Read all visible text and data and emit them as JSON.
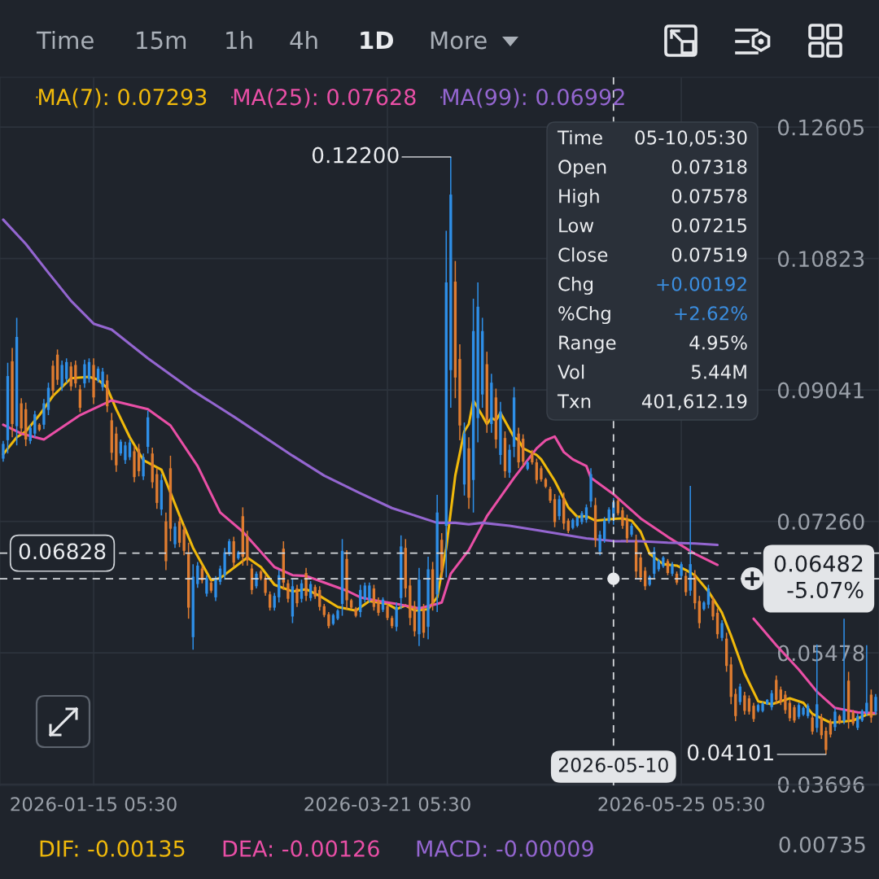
{
  "chart_data": {
    "type": "candlestick",
    "x": [
      "2025-12-26",
      "2025-12-27",
      "2025-12-28",
      "2025-12-29",
      "2025-12-30",
      "2025-12-31",
      "2026-01-01",
      "2026-01-02",
      "2026-01-03",
      "2026-01-04",
      "2026-01-05",
      "2026-01-06",
      "2026-01-07",
      "2026-01-08",
      "2026-01-09",
      "2026-01-10",
      "2026-01-11",
      "2026-01-12",
      "2026-01-13",
      "2026-01-14",
      "2026-01-15",
      "2026-01-16",
      "2026-01-17",
      "2026-01-18",
      "2026-01-19",
      "2026-01-20",
      "2026-01-21",
      "2026-01-22",
      "2026-01-23",
      "2026-01-24",
      "2026-01-25",
      "2026-01-26",
      "2026-01-27",
      "2026-01-28",
      "2026-01-29",
      "2026-01-30",
      "2026-01-31",
      "2026-02-01",
      "2026-02-02",
      "2026-02-03",
      "2026-02-04",
      "2026-02-05",
      "2026-02-06",
      "2026-02-07",
      "2026-02-08",
      "2026-02-09",
      "2026-02-10",
      "2026-02-11",
      "2026-02-12",
      "2026-02-13",
      "2026-02-14",
      "2026-02-15",
      "2026-02-16",
      "2026-02-17",
      "2026-02-18",
      "2026-02-19",
      "2026-02-20",
      "2026-02-21",
      "2026-02-22",
      "2026-02-23",
      "2026-02-24",
      "2026-02-25",
      "2026-02-26",
      "2026-02-27",
      "2026-02-28",
      "2026-03-01",
      "2026-03-02",
      "2026-03-03",
      "2026-03-04",
      "2026-03-05",
      "2026-03-06",
      "2026-03-07",
      "2026-03-08",
      "2026-03-09",
      "2026-03-10",
      "2026-03-11",
      "2026-03-12",
      "2026-03-13",
      "2026-03-14",
      "2026-03-15",
      "2026-03-16",
      "2026-03-17",
      "2026-03-18",
      "2026-03-19",
      "2026-03-20",
      "2026-03-21",
      "2026-03-22",
      "2026-03-23",
      "2026-03-24",
      "2026-03-25",
      "2026-03-26",
      "2026-03-27",
      "2026-03-28",
      "2026-03-29",
      "2026-03-30",
      "2026-03-31",
      "2026-04-01",
      "2026-04-02",
      "2026-04-03",
      "2026-04-04",
      "2026-04-05",
      "2026-04-06",
      "2026-04-07",
      "2026-04-08",
      "2026-04-09",
      "2026-04-10",
      "2026-04-11",
      "2026-04-12",
      "2026-04-13",
      "2026-04-14",
      "2026-04-15",
      "2026-04-16",
      "2026-04-17",
      "2026-04-18",
      "2026-04-19",
      "2026-04-20",
      "2026-04-21",
      "2026-04-22",
      "2026-04-23",
      "2026-04-24",
      "2026-04-25",
      "2026-04-26",
      "2026-04-27",
      "2026-04-28",
      "2026-04-29",
      "2026-04-30",
      "2026-05-01",
      "2026-05-02",
      "2026-05-03",
      "2026-05-04",
      "2026-05-05",
      "2026-05-06",
      "2026-05-07",
      "2026-05-08",
      "2026-05-09",
      "2026-05-10",
      "2026-05-11",
      "2026-05-12",
      "2026-05-13",
      "2026-05-14",
      "2026-05-15",
      "2026-05-16",
      "2026-05-17",
      "2026-05-18",
      "2026-05-19",
      "2026-05-20",
      "2026-05-21",
      "2026-05-22",
      "2026-05-23",
      "2026-05-24",
      "2026-05-25",
      "2026-05-26",
      "2026-05-27",
      "2026-05-28",
      "2026-05-29",
      "2026-05-30",
      "2026-05-31",
      "2026-06-01",
      "2026-06-02",
      "2026-06-03",
      "2026-06-04",
      "2026-06-05",
      "2026-06-06",
      "2026-06-07",
      "2026-06-08",
      "2026-06-09",
      "2026-06-10",
      "2026-06-11",
      "2026-06-12",
      "2026-06-13",
      "2026-06-14",
      "2026-06-15",
      "2026-06-16",
      "2026-06-17",
      "2026-06-18",
      "2026-06-19",
      "2026-06-20",
      "2026-06-21",
      "2026-06-22",
      "2026-06-23",
      "2026-06-24",
      "2026-06-25",
      "2026-06-26",
      "2026-06-27",
      "2026-06-28",
      "2026-06-29",
      "2026-06-30",
      "2026-07-01",
      "2026-07-02",
      "2026-07-03",
      "2026-07-04",
      "2026-07-05",
      "2026-07-06",
      "2026-07-07"
    ],
    "ohlc": [
      [
        0.0811,
        0.0835,
        0.0807,
        0.0831
      ],
      [
        0.0836,
        0.0941,
        0.0818,
        0.0923
      ],
      [
        0.0943,
        0.0961,
        0.084,
        0.0858
      ],
      [
        0.0855,
        0.1002,
        0.0829,
        0.0976
      ],
      [
        0.0886,
        0.0893,
        0.0845,
        0.0852
      ],
      [
        0.0878,
        0.0887,
        0.0828,
        0.0837
      ],
      [
        0.0835,
        0.0857,
        0.0831,
        0.0853
      ],
      [
        0.0845,
        0.0876,
        0.084,
        0.0871
      ],
      [
        0.0857,
        0.0859,
        0.0848,
        0.085
      ],
      [
        0.0857,
        0.0892,
        0.0851,
        0.0886
      ],
      [
        0.0877,
        0.0914,
        0.087,
        0.0907
      ],
      [
        0.0937,
        0.0944,
        0.0896,
        0.0903
      ],
      [
        0.0952,
        0.0959,
        0.0911,
        0.0918
      ],
      [
        0.0909,
        0.0944,
        0.0903,
        0.0938
      ],
      [
        0.0919,
        0.0947,
        0.0914,
        0.0942
      ],
      [
        0.0936,
        0.0942,
        0.0903,
        0.0909
      ],
      [
        0.0938,
        0.0944,
        0.0907,
        0.0913
      ],
      [
        0.0905,
        0.0911,
        0.0874,
        0.088
      ],
      [
        0.0913,
        0.0945,
        0.0907,
        0.0939
      ],
      [
        0.0919,
        0.0947,
        0.0914,
        0.0942
      ],
      [
        0.0938,
        0.0947,
        0.0885,
        0.0894
      ],
      [
        0.0917,
        0.0936,
        0.0914,
        0.0933
      ],
      [
        0.0908,
        0.0934,
        0.0903,
        0.0929
      ],
      [
        0.0917,
        0.0925,
        0.0874,
        0.0882
      ],
      [
        0.0863,
        0.0873,
        0.0809,
        0.0819
      ],
      [
        0.0845,
        0.0854,
        0.0793,
        0.0802
      ],
      [
        0.0818,
        0.0837,
        0.0815,
        0.0834
      ],
      [
        0.0809,
        0.0834,
        0.0804,
        0.0829
      ],
      [
        0.0813,
        0.0837,
        0.0809,
        0.0833
      ],
      [
        0.0821,
        0.0828,
        0.0779,
        0.0786
      ],
      [
        0.0824,
        0.0831,
        0.0787,
        0.0794
      ],
      [
        0.0787,
        0.0818,
        0.0782,
        0.0813
      ],
      [
        0.0827,
        0.0876,
        0.0818,
        0.0867
      ],
      [
        0.0818,
        0.0826,
        0.0771,
        0.0779
      ],
      [
        0.079,
        0.0798,
        0.0743,
        0.0751
      ],
      [
        0.0742,
        0.079,
        0.0734,
        0.0782
      ],
      [
        0.0726,
        0.0738,
        0.066,
        0.0672
      ],
      [
        0.0798,
        0.0815,
        0.0699,
        0.0716
      ],
      [
        0.0695,
        0.0724,
        0.069,
        0.0719
      ],
      [
        0.0726,
        0.0732,
        0.0691,
        0.0697
      ],
      [
        0.0715,
        0.0721,
        0.068,
        0.0686
      ],
      [
        0.0682,
        0.0697,
        0.0594,
        0.0609
      ],
      [
        0.0569,
        0.0668,
        0.0552,
        0.0651
      ],
      [
        0.0641,
        0.0671,
        0.0636,
        0.0666
      ],
      [
        0.0662,
        0.0666,
        0.0642,
        0.0646
      ],
      [
        0.0628,
        0.0653,
        0.0624,
        0.0649
      ],
      [
        0.0643,
        0.0646,
        0.0629,
        0.0632
      ],
      [
        0.0623,
        0.0652,
        0.0618,
        0.0647
      ],
      [
        0.0644,
        0.0666,
        0.064,
        0.0662
      ],
      [
        0.0653,
        0.069,
        0.0647,
        0.0684
      ],
      [
        0.0682,
        0.0702,
        0.0679,
        0.0699
      ],
      [
        0.0699,
        0.0705,
        0.0664,
        0.067
      ],
      [
        0.0676,
        0.0686,
        0.0674,
        0.0684
      ],
      [
        0.0733,
        0.0745,
        0.0666,
        0.0678
      ],
      [
        0.0706,
        0.0713,
        0.0666,
        0.0673
      ],
      [
        0.0662,
        0.0668,
        0.0627,
        0.0633
      ],
      [
        0.0638,
        0.0658,
        0.0635,
        0.0655
      ],
      [
        0.0658,
        0.066,
        0.0646,
        0.0648
      ],
      [
        0.0649,
        0.0653,
        0.0625,
        0.0629
      ],
      [
        0.0627,
        0.0631,
        0.0605,
        0.0609
      ],
      [
        0.0609,
        0.0629,
        0.0605,
        0.0625
      ],
      [
        0.0623,
        0.066,
        0.0616,
        0.0653
      ],
      [
        0.0689,
        0.0699,
        0.0633,
        0.0643
      ],
      [
        0.0642,
        0.0647,
        0.0616,
        0.0621
      ],
      [
        0.0597,
        0.0647,
        0.0588,
        0.0638
      ],
      [
        0.0635,
        0.064,
        0.061,
        0.0615
      ],
      [
        0.0621,
        0.0647,
        0.0616,
        0.0642
      ],
      [
        0.0656,
        0.0663,
        0.0618,
        0.0625
      ],
      [
        0.0622,
        0.0645,
        0.0618,
        0.0641
      ],
      [
        0.0637,
        0.064,
        0.0621,
        0.0624
      ],
      [
        0.0633,
        0.0638,
        0.0605,
        0.061
      ],
      [
        0.0611,
        0.0614,
        0.0596,
        0.0599
      ],
      [
        0.06,
        0.0603,
        0.0581,
        0.0584
      ],
      [
        0.0587,
        0.0601,
        0.0585,
        0.0599
      ],
      [
        0.0594,
        0.0607,
        0.0592,
        0.0605
      ],
      [
        0.0614,
        0.0702,
        0.0598,
        0.0686
      ],
      [
        0.0675,
        0.0687,
        0.0607,
        0.0619
      ],
      [
        0.0619,
        0.0621,
        0.0607,
        0.0609
      ],
      [
        0.0608,
        0.061,
        0.0596,
        0.0598
      ],
      [
        0.0603,
        0.064,
        0.0596,
        0.0633
      ],
      [
        0.062,
        0.0643,
        0.0616,
        0.0639
      ],
      [
        0.062,
        0.0643,
        0.0616,
        0.0639
      ],
      [
        0.0635,
        0.064,
        0.0605,
        0.061
      ],
      [
        0.0619,
        0.0623,
        0.0598,
        0.0602
      ],
      [
        0.0606,
        0.0623,
        0.0603,
        0.062
      ],
      [
        0.0611,
        0.0614,
        0.0592,
        0.0595
      ],
      [
        0.0595,
        0.0598,
        0.0581,
        0.0584
      ],
      [
        0.0583,
        0.0616,
        0.0577,
        0.061
      ],
      [
        0.0622,
        0.0707,
        0.0607,
        0.0692
      ],
      [
        0.069,
        0.0702,
        0.0623,
        0.0635
      ],
      [
        0.0639,
        0.0649,
        0.0585,
        0.0595
      ],
      [
        0.0611,
        0.0618,
        0.057,
        0.0577
      ],
      [
        0.0573,
        0.0663,
        0.0557,
        0.0647
      ],
      [
        0.0607,
        0.0614,
        0.0568,
        0.0575
      ],
      [
        0.0583,
        0.0678,
        0.0566,
        0.0661
      ],
      [
        0.0661,
        0.0671,
        0.0605,
        0.0615
      ],
      [
        0.0627,
        0.0762,
        0.0603,
        0.0738
      ],
      [
        0.0701,
        0.071,
        0.065,
        0.0659
      ],
      [
        0.072,
        0.112,
        0.065,
        0.105
      ],
      [
        0.0931,
        0.122,
        0.088,
        0.1169
      ],
      [
        0.1051,
        0.1079,
        0.0893,
        0.0921
      ],
      [
        0.0946,
        0.0966,
        0.0836,
        0.0856
      ],
      [
        0.0776,
        0.086,
        0.0761,
        0.0845
      ],
      [
        0.0825,
        0.084,
        0.0743,
        0.0758
      ],
      [
        0.0782,
        0.1028,
        0.0738,
        0.0984
      ],
      [
        0.0866,
        0.105,
        0.0833,
        0.1017
      ],
      [
        0.0898,
        0.1002,
        0.088,
        0.0984
      ],
      [
        0.0939,
        0.0956,
        0.0846,
        0.0863
      ],
      [
        0.0858,
        0.0926,
        0.0846,
        0.0914
      ],
      [
        0.0894,
        0.0906,
        0.0825,
        0.0837
      ],
      [
        0.0816,
        0.0888,
        0.0803,
        0.0875
      ],
      [
        0.0839,
        0.0848,
        0.0785,
        0.0794
      ],
      [
        0.0792,
        0.083,
        0.0785,
        0.0823
      ],
      [
        0.0827,
        0.0908,
        0.0813,
        0.0894
      ],
      [
        0.0845,
        0.0853,
        0.0798,
        0.0806
      ],
      [
        0.0838,
        0.0844,
        0.0801,
        0.0807
      ],
      [
        0.0797,
        0.0808,
        0.0795,
        0.0806
      ],
      [
        0.082,
        0.0823,
        0.0803,
        0.0806
      ],
      [
        0.0806,
        0.0811,
        0.0777,
        0.0782
      ],
      [
        0.0798,
        0.0801,
        0.078,
        0.0783
      ],
      [
        0.0783,
        0.0785,
        0.0771,
        0.0773
      ],
      [
        0.077,
        0.0773,
        0.0751,
        0.0754
      ],
      [
        0.0756,
        0.0763,
        0.0718,
        0.0725
      ],
      [
        0.0733,
        0.0761,
        0.0728,
        0.0756
      ],
      [
        0.0757,
        0.0765,
        0.0715,
        0.0723
      ],
      [
        0.0727,
        0.073,
        0.071,
        0.0713
      ],
      [
        0.0717,
        0.073,
        0.0715,
        0.0728
      ],
      [
        0.072,
        0.0733,
        0.0718,
        0.0731
      ],
      [
        0.0725,
        0.074,
        0.0722,
        0.0737
      ],
      [
        0.0728,
        0.0749,
        0.0724,
        0.0745
      ],
      [
        0.0753,
        0.0798,
        0.0745,
        0.079
      ],
      [
        0.0748,
        0.0758,
        0.0691,
        0.0701
      ],
      [
        0.0685,
        0.0713,
        0.068,
        0.0708
      ],
      [
        0.0702,
        0.0732,
        0.0697,
        0.0727
      ],
      [
        0.0726,
        0.0745,
        0.0723,
        0.0742
      ],
      [
        0.07318,
        0.07578,
        0.07215,
        0.07519
      ],
      [
        0.0754,
        0.0757,
        0.0734,
        0.0737
      ],
      [
        0.0741,
        0.0745,
        0.0716,
        0.072
      ],
      [
        0.0729,
        0.0735,
        0.0697,
        0.0703
      ],
      [
        0.0708,
        0.0723,
        0.0705,
        0.072
      ],
      [
        0.0699,
        0.0708,
        0.0649,
        0.0658
      ],
      [
        0.0677,
        0.0683,
        0.0644,
        0.065
      ],
      [
        0.0659,
        0.0664,
        0.0633,
        0.0638
      ],
      [
        0.064,
        0.0653,
        0.0638,
        0.0651
      ],
      [
        0.0655,
        0.0691,
        0.0649,
        0.0685
      ],
      [
        0.0661,
        0.0675,
        0.0658,
        0.0672
      ],
      [
        0.0665,
        0.0679,
        0.0663,
        0.0677
      ],
      [
        0.0672,
        0.0675,
        0.0653,
        0.0656
      ],
      [
        0.0655,
        0.0671,
        0.0652,
        0.0668
      ],
      [
        0.0655,
        0.0658,
        0.064,
        0.0643
      ],
      [
        0.0652,
        0.0671,
        0.0649,
        0.0668
      ],
      [
        0.0652,
        0.0657,
        0.0625,
        0.063
      ],
      [
        0.0632,
        0.0774,
        0.0625,
        0.0668
      ],
      [
        0.0652,
        0.066,
        0.0607,
        0.0615
      ],
      [
        0.0618,
        0.0625,
        0.0581,
        0.0588
      ],
      [
        0.0607,
        0.0618,
        0.0605,
        0.0616
      ],
      [
        0.0613,
        0.064,
        0.0608,
        0.0635
      ],
      [
        0.0619,
        0.0624,
        0.0592,
        0.0597
      ],
      [
        0.0602,
        0.0608,
        0.0567,
        0.0573
      ],
      [
        0.0568,
        0.0592,
        0.0564,
        0.0588
      ],
      [
        0.0567,
        0.0575,
        0.0522,
        0.053
      ],
      [
        0.0532,
        0.0542,
        0.0478,
        0.0488
      ],
      [
        0.0492,
        0.0499,
        0.0455,
        0.0462
      ],
      [
        0.0481,
        0.0506,
        0.0477,
        0.0502
      ],
      [
        0.049,
        0.0495,
        0.0464,
        0.0469
      ],
      [
        0.0486,
        0.049,
        0.0464,
        0.0468
      ],
      [
        0.0476,
        0.048,
        0.0454,
        0.0458
      ],
      [
        0.0469,
        0.0479,
        0.0467,
        0.0477
      ],
      [
        0.0469,
        0.0481,
        0.0467,
        0.0479
      ],
      [
        0.0478,
        0.0485,
        0.0477,
        0.0484
      ],
      [
        0.0474,
        0.0497,
        0.047,
        0.0493
      ],
      [
        0.0511,
        0.0517,
        0.0478,
        0.0484
      ],
      [
        0.0498,
        0.0502,
        0.0477,
        0.0481
      ],
      [
        0.0491,
        0.0496,
        0.0465,
        0.047
      ],
      [
        0.048,
        0.0484,
        0.0455,
        0.0459
      ],
      [
        0.0474,
        0.0477,
        0.0453,
        0.0456
      ],
      [
        0.0461,
        0.048,
        0.0458,
        0.0477
      ],
      [
        0.0464,
        0.0475,
        0.0462,
        0.0473
      ],
      [
        0.0462,
        0.0479,
        0.0459,
        0.0476
      ],
      [
        0.046,
        0.0464,
        0.0437,
        0.0441
      ],
      [
        0.0446,
        0.0559,
        0.044,
        0.0478
      ],
      [
        0.046,
        0.0465,
        0.0431,
        0.0436
      ],
      [
        0.0442,
        0.0447,
        0.04101,
        0.0416
      ],
      [
        0.0454,
        0.0458,
        0.0433,
        0.0437
      ],
      [
        0.0447,
        0.0473,
        0.0442,
        0.0468
      ],
      [
        0.0462,
        0.0464,
        0.0451,
        0.0453
      ],
      [
        0.0455,
        0.0594,
        0.0451,
        0.047
      ],
      [
        0.051,
        0.0522,
        0.0445,
        0.0457
      ],
      [
        0.0467,
        0.047,
        0.0449,
        0.0452
      ],
      [
        0.0446,
        0.0465,
        0.0443,
        0.0462
      ],
      [
        0.0456,
        0.0471,
        0.0454,
        0.0469
      ],
      [
        0.0466,
        0.0558,
        0.0462,
        0.048
      ],
      [
        0.0491,
        0.0498,
        0.0453,
        0.046
      ],
      [
        0.0468,
        0.0492,
        0.0464,
        0.0488
      ]
    ],
    "colors": [
      "#2e8fe8",
      "#2e8fe8",
      "#df7c30",
      "#2e8fe8",
      "#df7c30",
      "#df7c30",
      "#2e8fe8",
      "#2e8fe8",
      "#df7c30",
      "#2e8fe8",
      "#2e8fe8",
      "#df7c30",
      "#df7c30",
      "#2e8fe8",
      "#2e8fe8",
      "#df7c30",
      "#df7c30",
      "#df7c30",
      "#2e8fe8",
      "#2e8fe8",
      "#df7c30",
      "#2e8fe8",
      "#2e8fe8",
      "#df7c30",
      "#df7c30",
      "#df7c30",
      "#2e8fe8",
      "#2e8fe8",
      "#2e8fe8",
      "#df7c30",
      "#df7c30",
      "#2e8fe8",
      "#2e8fe8",
      "#df7c30",
      "#df7c30",
      "#2e8fe8",
      "#df7c30",
      "#df7c30",
      "#2e8fe8",
      "#df7c30",
      "#df7c30",
      "#df7c30",
      "#2e8fe8",
      "#2e8fe8",
      "#df7c30",
      "#2e8fe8",
      "#df7c30",
      "#2e8fe8",
      "#2e8fe8",
      "#2e8fe8",
      "#2e8fe8",
      "#df7c30",
      "#2e8fe8",
      "#df7c30",
      "#df7c30",
      "#df7c30",
      "#2e8fe8",
      "#df7c30",
      "#df7c30",
      "#df7c30",
      "#2e8fe8",
      "#2e8fe8",
      "#df7c30",
      "#df7c30",
      "#2e8fe8",
      "#df7c30",
      "#2e8fe8",
      "#df7c30",
      "#2e8fe8",
      "#df7c30",
      "#df7c30",
      "#df7c30",
      "#df7c30",
      "#2e8fe8",
      "#2e8fe8",
      "#2e8fe8",
      "#df7c30",
      "#df7c30",
      "#df7c30",
      "#2e8fe8",
      "#2e8fe8",
      "#2e8fe8",
      "#df7c30",
      "#df7c30",
      "#2e8fe8",
      "#df7c30",
      "#df7c30",
      "#2e8fe8",
      "#2e8fe8",
      "#df7c30",
      "#df7c30",
      "#df7c30",
      "#2e8fe8",
      "#df7c30",
      "#2e8fe8",
      "#df7c30",
      "#2e8fe8",
      "#df7c30",
      "#2e8fe8",
      "#2e8fe8",
      "#df7c30",
      "#df7c30",
      "#2e8fe8",
      "#df7c30",
      "#2e8fe8",
      "#2e8fe8",
      "#2e8fe8",
      "#df7c30",
      "#2e8fe8",
      "#df7c30",
      "#2e8fe8",
      "#df7c30",
      "#2e8fe8",
      "#2e8fe8",
      "#df7c30",
      "#df7c30",
      "#2e8fe8",
      "#df7c30",
      "#df7c30",
      "#df7c30",
      "#df7c30",
      "#df7c30",
      "#df7c30",
      "#2e8fe8",
      "#df7c30",
      "#df7c30",
      "#2e8fe8",
      "#2e8fe8",
      "#2e8fe8",
      "#2e8fe8",
      "#2e8fe8",
      "#df7c30",
      "#2e8fe8",
      "#2e8fe8",
      "#2e8fe8",
      "#2e8fe8",
      "#df7c30",
      "#df7c30",
      "#df7c30",
      "#2e8fe8",
      "#df7c30",
      "#df7c30",
      "#df7c30",
      "#2e8fe8",
      "#2e8fe8",
      "#2e8fe8",
      "#2e8fe8",
      "#df7c30",
      "#2e8fe8",
      "#df7c30",
      "#2e8fe8",
      "#df7c30",
      "#2e8fe8",
      "#df7c30",
      "#df7c30",
      "#2e8fe8",
      "#2e8fe8",
      "#df7c30",
      "#df7c30",
      "#2e8fe8",
      "#df7c30",
      "#df7c30",
      "#df7c30",
      "#2e8fe8",
      "#df7c30",
      "#df7c30",
      "#df7c30",
      "#2e8fe8",
      "#2e8fe8",
      "#2e8fe8",
      "#2e8fe8",
      "#df7c30",
      "#df7c30",
      "#df7c30",
      "#df7c30",
      "#df7c30",
      "#2e8fe8",
      "#2e8fe8",
      "#2e8fe8",
      "#df7c30",
      "#2e8fe8",
      "#df7c30",
      "#df7c30",
      "#df7c30",
      "#2e8fe8",
      "#df7c30",
      "#2e8fe8",
      "#df7c30",
      "#df7c30",
      "#2e8fe8",
      "#2e8fe8",
      "#2e8fe8",
      "#df7c30",
      "#2e8fe8"
    ],
    "series": [
      {
        "type": "line",
        "name": "MA(7): 0.07293",
        "color": "#f0b90b",
        "x": [
          "2025-12-26",
          "2025-12-29",
          "2025-12-31",
          "2026-01-03",
          "2026-01-06",
          "2026-01-10",
          "2026-01-14",
          "2026-01-16",
          "2026-01-18",
          "2026-01-20",
          "2026-01-23",
          "2026-01-26",
          "2026-01-30",
          "2026-02-03",
          "2026-02-06",
          "2026-02-10",
          "2026-02-12",
          "2026-02-18",
          "2026-02-21",
          "2026-02-24",
          "2026-02-28",
          "2026-03-03",
          "2026-03-06",
          "2026-03-10",
          "2026-03-14",
          "2026-03-17",
          "2026-03-21",
          "2026-03-23",
          "2026-03-25",
          "2026-03-27",
          "2026-03-30",
          "2026-04-01",
          "2026-04-03",
          "2026-04-05",
          "2026-04-07",
          "2026-04-08",
          "2026-04-09",
          "2026-04-11",
          "2026-04-12",
          "2026-04-13",
          "2026-04-14",
          "2026-04-15",
          "2026-04-18",
          "2026-04-19",
          "2026-04-20",
          "2026-04-23",
          "2026-04-24",
          "2026-04-27",
          "2026-04-30",
          "2026-05-02",
          "2026-05-04",
          "2026-05-06",
          "2026-05-10",
          "2026-05-12",
          "2026-05-14",
          "2026-05-16",
          "2026-05-18",
          "2026-05-21",
          "2026-05-24",
          "2026-05-26",
          "2026-05-28",
          "2026-05-31",
          "2026-06-03",
          "2026-06-05",
          "2026-06-08",
          "2026-06-11",
          "2026-06-14",
          "2026-06-18",
          "2026-06-21",
          "2026-06-23",
          "2026-06-27",
          "2026-06-29",
          "2026-07-02",
          "2026-07-05",
          "2026-07-07"
        ],
        "values": [
          0.0817,
          0.084,
          0.0848,
          0.087,
          0.0896,
          0.092,
          0.0922,
          0.0918,
          0.0907,
          0.0878,
          0.084,
          0.0809,
          0.0796,
          0.0734,
          0.069,
          0.0646,
          0.0649,
          0.0677,
          0.0664,
          0.064,
          0.0631,
          0.0634,
          0.0625,
          0.061,
          0.0605,
          0.0618,
          0.0614,
          0.0607,
          0.0612,
          0.0605,
          0.0607,
          0.0623,
          0.069,
          0.0788,
          0.0848,
          0.0858,
          0.089,
          0.0869,
          0.0858,
          0.0866,
          0.0863,
          0.0873,
          0.084,
          0.0836,
          0.0825,
          0.0816,
          0.081,
          0.0781,
          0.0745,
          0.0732,
          0.0733,
          0.0727,
          0.07293,
          0.073,
          0.0727,
          0.0712,
          0.0682,
          0.0668,
          0.0666,
          0.066,
          0.0653,
          0.0631,
          0.0602,
          0.0571,
          0.052,
          0.0482,
          0.0478,
          0.0486,
          0.048,
          0.0465,
          0.0453,
          0.0454,
          0.0456,
          0.0464,
          0.0465
        ]
      },
      {
        "type": "line",
        "name": "MA(25): 0.07628",
        "color": "#e94fa6",
        "x": [
          "2025-12-26",
          "2025-12-30",
          "2026-01-04",
          "2026-01-12",
          "2026-01-19",
          "2026-01-27",
          "2026-02-01",
          "2026-02-07",
          "2026-02-12",
          "2026-02-17",
          "2026-02-24",
          "2026-02-28",
          "2026-03-03",
          "2026-03-07",
          "2026-03-12",
          "2026-03-15",
          "2026-03-19",
          "2026-03-23",
          "2026-03-28",
          "2026-04-01",
          "2026-04-02",
          "2026-04-04",
          "2026-04-08",
          "2026-04-12",
          "2026-04-18",
          "2026-04-23",
          "2026-04-25",
          "2026-04-27",
          "2026-04-29",
          "2026-05-01",
          "2026-05-04",
          "2026-05-05",
          "2026-05-10",
          "2026-05-16",
          "2026-05-22",
          "2026-05-28",
          "2026-06-02",
          "2026-06-05",
          "2026-06-10",
          "2026-06-15",
          "2026-06-20",
          "2026-06-24",
          "2026-06-28",
          "2026-07-03",
          "2026-07-07"
        ],
        "values": [
          0.0857,
          0.0845,
          0.0837,
          0.087,
          0.089,
          0.0878,
          0.0856,
          0.0801,
          0.0738,
          0.0712,
          0.0664,
          0.0653,
          0.0652,
          0.0643,
          0.0632,
          0.0623,
          0.0618,
          0.0614,
          0.0608,
          0.0614,
          0.0616,
          0.0655,
          0.0687,
          0.0733,
          0.0785,
          0.0825,
          0.0836,
          0.0841,
          0.082,
          0.081,
          0.0801,
          0.0785,
          0.07628,
          0.073,
          0.0705,
          0.0682,
          0.0667,
          null,
          0.0594,
          0.0558,
          0.0525,
          0.0495,
          0.0473,
          0.0467,
          0.0466
        ]
      },
      {
        "type": "line",
        "name": "MA(99): 0.06992",
        "color": "#9466d0",
        "x": [
          "2025-12-26",
          "2025-12-31",
          "2026-01-05",
          "2026-01-10",
          "2026-01-15",
          "2026-01-19",
          "2026-01-27",
          "2026-02-06",
          "2026-02-15",
          "2026-02-28",
          "2026-03-07",
          "2026-03-15",
          "2026-03-22",
          "2026-04-01",
          "2026-04-05",
          "2026-04-08",
          "2026-04-11",
          "2026-04-17",
          "2026-04-24",
          "2026-05-04",
          "2026-05-10",
          "2026-05-16",
          "2026-05-22",
          "2026-05-28",
          "2026-06-02"
        ],
        "values": [
          0.1135,
          0.1102,
          0.1063,
          0.1025,
          0.0994,
          0.0986,
          0.0947,
          0.0903,
          0.0868,
          0.0815,
          0.0788,
          0.0764,
          0.0744,
          0.0724,
          0.0724,
          0.0722,
          0.0724,
          0.072,
          0.0713,
          0.0703,
          0.06992,
          0.0699,
          0.0697,
          0.0696,
          0.0694
        ]
      }
    ],
    "xlim": [
      "2025-12-25T07:00",
      "2026-07-07T17:30"
    ],
    "xticks": [
      {
        "value": "2026-01-15",
        "label": "2026-01-15 05:30"
      },
      {
        "value": "2026-03-21",
        "label": "2026-03-21 05:30"
      },
      {
        "value": "2026-05-25",
        "label": "2026-05-25 05:30"
      }
    ],
    "ylim": [
      0.0368,
      0.1328
    ],
    "yticks": [
      0.12605,
      0.10823,
      0.09041,
      {
        "value": 0.0726,
        "label": "0.07260"
      },
      0.05478,
      0.03696
    ],
    "grid": true,
    "legend": "top left",
    "ref_lines": [
      {
        "axis": "y",
        "value": 0.06828,
        "label": "0.06828",
        "color": "#d5d8dc",
        "line_style": "dashed"
      },
      {
        "axis": "y",
        "value": 0.06482,
        "label": "0.06482\n-5.07%",
        "color": "#d5d8dc",
        "line_style": "dashed"
      },
      {
        "axis": "x",
        "value": "2026-05-10",
        "label": "2026-05-10",
        "color": "#d5d8dc",
        "line_style": "dashed"
      }
    ],
    "annotations": [
      "Time",
      "15m",
      "1h",
      "4h",
      "1D",
      "More",
      "Time",
      "05-10,05:30",
      "Open",
      "0.07318",
      "High",
      "0.07578",
      "Low",
      "0.07215",
      "Close",
      "0.07519",
      "Chg",
      "+0.00192",
      "%Chg",
      "+2.62%",
      "Range",
      "4.95%",
      "Vol",
      "5.44M",
      "Txn",
      "401,612.19",
      "DIF: -0.00135",
      "DEA: -0.00126",
      "MACD: -0.00009",
      "0.00735",
      {
        "text": "0.12200",
        "x": "2026-04-04",
        "y": 0.122
      },
      {
        "text": "0.04101",
        "x": "2026-06-26",
        "y": 0.04101
      }
    ]
  }
}
